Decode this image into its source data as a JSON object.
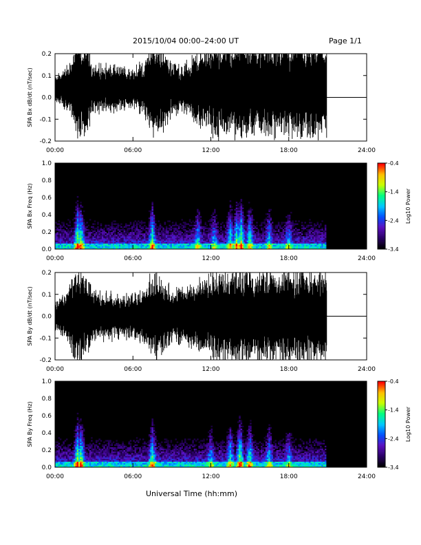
{
  "header": {
    "title": "2015/10/04  00:00–24:00 UT",
    "page": "Page 1/1"
  },
  "footer": {
    "xlabel": "Universal Time (hh:mm)"
  },
  "colors": {
    "background": "#ffffff",
    "trace": "#000000",
    "spectrogram_background": "#000000",
    "colormap": [
      "#000000",
      "#2a0066",
      "#5a10c0",
      "#0050ff",
      "#00c8ff",
      "#00ff80",
      "#c8ff00",
      "#ffc000",
      "#ff0000"
    ]
  },
  "chart_data": [
    {
      "type": "line",
      "panel": "bx-derivative",
      "ylabel": "SPA Bx dB/dt (nT/sec)",
      "xlim": [
        "00:00",
        "24:00"
      ],
      "ylim": [
        -0.2,
        0.2
      ],
      "xticks": [
        "00:00",
        "06:00",
        "12:00",
        "18:00",
        "24:00"
      ],
      "yticks": [
        "-0.2",
        "-0.1",
        "0.0",
        "0.1",
        "0.2"
      ],
      "data_end": "20:55",
      "flat_value_after_end": 0.0,
      "baseline": 0.04,
      "amplitude_profile": {
        "x": [
          "00:00",
          "01:00",
          "01:40",
          "02:00",
          "02:30",
          "03:00",
          "04:00",
          "05:00",
          "06:00",
          "07:00",
          "07:30",
          "08:00",
          "09:00",
          "10:00",
          "11:00",
          "12:00",
          "13:00",
          "14:00",
          "14:30",
          "15:00",
          "16:00",
          "17:00",
          "18:00",
          "19:00",
          "20:00",
          "20:55"
        ],
        "y": [
          0.05,
          0.1,
          0.2,
          0.2,
          0.18,
          0.1,
          0.1,
          0.09,
          0.09,
          0.12,
          0.2,
          0.2,
          0.12,
          0.1,
          0.16,
          0.2,
          0.2,
          0.2,
          0.2,
          0.2,
          0.2,
          0.2,
          0.2,
          0.2,
          0.2,
          0.2
        ]
      }
    },
    {
      "type": "heatmap",
      "panel": "bx-spectrogram",
      "ylabel": "SPA Bx Freq (Hz)",
      "xlim": [
        "00:00",
        "24:00"
      ],
      "ylim": [
        0.0,
        1.0
      ],
      "xticks": [
        "00:00",
        "06:00",
        "12:00",
        "18:00",
        "24:00"
      ],
      "yticks": [
        "0.0",
        "0.2",
        "0.4",
        "0.6",
        "0.8",
        "1.0"
      ],
      "colorbar_label": "Log10 Power",
      "colorbar_range": [
        -3.4,
        -0.4
      ],
      "colorbar_ticks": [
        "-0.4",
        "-1.4",
        "-2.4",
        "-3.4"
      ],
      "data_end": "20:55",
      "activity_bands": [
        {
          "x": "01:45",
          "strength": 1.0
        },
        {
          "x": "02:00",
          "strength": 0.9
        },
        {
          "x": "07:30",
          "strength": 0.85
        },
        {
          "x": "11:00",
          "strength": 0.6
        },
        {
          "x": "12:15",
          "strength": 0.5
        },
        {
          "x": "13:30",
          "strength": 0.75
        },
        {
          "x": "14:00",
          "strength": 0.9
        },
        {
          "x": "14:20",
          "strength": 1.0
        },
        {
          "x": "15:00",
          "strength": 0.8
        },
        {
          "x": "16:30",
          "strength": 0.55
        },
        {
          "x": "18:00",
          "strength": 0.5
        }
      ]
    },
    {
      "type": "line",
      "panel": "by-derivative",
      "ylabel": "SPA By dB/dt (nT/sec)",
      "xlim": [
        "00:00",
        "24:00"
      ],
      "ylim": [
        -0.2,
        0.2
      ],
      "xticks": [
        "00:00",
        "06:00",
        "12:00",
        "18:00",
        "24:00"
      ],
      "yticks": [
        "-0.2",
        "-0.1",
        "0.0",
        "0.1",
        "0.2"
      ],
      "data_end": "20:55",
      "flat_value_after_end": 0.0,
      "baseline": 0.0,
      "amplitude_profile": {
        "x": [
          "00:00",
          "01:00",
          "01:40",
          "02:00",
          "02:30",
          "03:00",
          "04:00",
          "05:00",
          "06:00",
          "07:00",
          "07:30",
          "08:00",
          "09:00",
          "10:00",
          "11:00",
          "12:00",
          "13:00",
          "14:00",
          "14:30",
          "15:00",
          "16:00",
          "17:00",
          "18:00",
          "19:00",
          "20:00",
          "20:55"
        ],
        "y": [
          0.06,
          0.12,
          0.2,
          0.2,
          0.16,
          0.1,
          0.1,
          0.09,
          0.09,
          0.12,
          0.2,
          0.18,
          0.12,
          0.12,
          0.16,
          0.18,
          0.2,
          0.2,
          0.2,
          0.2,
          0.2,
          0.2,
          0.2,
          0.2,
          0.2,
          0.2
        ]
      }
    },
    {
      "type": "heatmap",
      "panel": "by-spectrogram",
      "ylabel": "SPA By Freq (Hz)",
      "xlim": [
        "00:00",
        "24:00"
      ],
      "ylim": [
        0.0,
        1.0
      ],
      "xticks": [
        "00:00",
        "06:00",
        "12:00",
        "18:00",
        "24:00"
      ],
      "yticks": [
        "0.0",
        "0.2",
        "0.4",
        "0.6",
        "0.8",
        "1.0"
      ],
      "colorbar_label": "Log10 Power",
      "colorbar_range": [
        -3.4,
        -0.4
      ],
      "colorbar_ticks": [
        "-0.4",
        "-1.4",
        "-2.4",
        "-3.4"
      ],
      "data_end": "20:55",
      "activity_bands": [
        {
          "x": "01:45",
          "strength": 1.0
        },
        {
          "x": "02:00",
          "strength": 0.95
        },
        {
          "x": "07:30",
          "strength": 0.85
        },
        {
          "x": "12:00",
          "strength": 0.55
        },
        {
          "x": "13:30",
          "strength": 0.7
        },
        {
          "x": "14:15",
          "strength": 1.0
        },
        {
          "x": "15:00",
          "strength": 0.8
        },
        {
          "x": "16:30",
          "strength": 0.6
        },
        {
          "x": "18:00",
          "strength": 0.5
        }
      ]
    }
  ]
}
